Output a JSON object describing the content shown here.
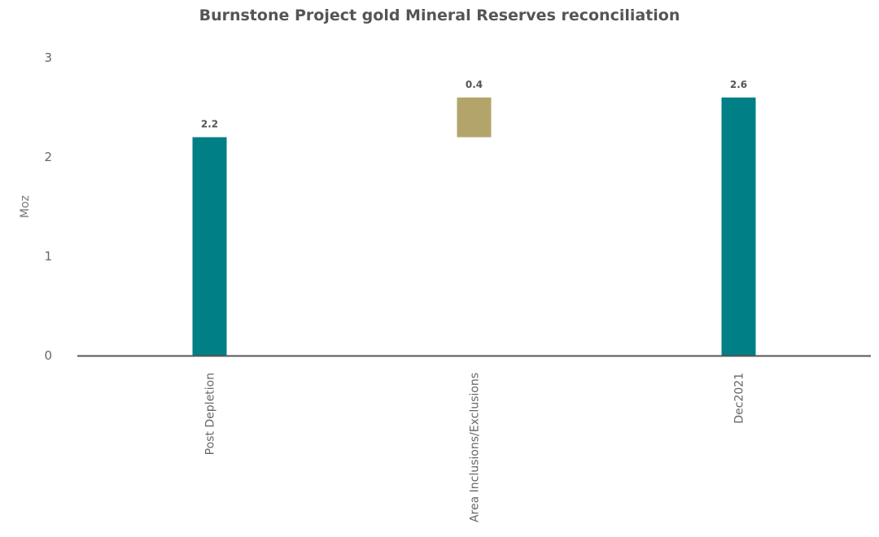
{
  "chart_data": {
    "type": "bar",
    "subtype": "waterfall",
    "title": "Burnstone Project gold Mineral Reserves reconciliation",
    "xlabel": "",
    "ylabel": "Moz",
    "ylim": [
      0,
      3
    ],
    "yticks": [
      0,
      1,
      2,
      3
    ],
    "grid": false,
    "categories": [
      "Post Depletion",
      "Area Inclusions/Exclusions",
      "Dec2021"
    ],
    "bars": [
      {
        "category": "Post Depletion",
        "base": 0,
        "value": 2.2,
        "label": "2.2",
        "kind": "total"
      },
      {
        "category": "Area Inclusions/Exclusions",
        "base": 2.2,
        "value": 0.4,
        "label": "0.4",
        "kind": "change"
      },
      {
        "category": "Dec2021",
        "base": 0,
        "value": 2.6,
        "label": "2.6",
        "kind": "total"
      }
    ],
    "colors": {
      "total": "#007f86",
      "change": "#b3a46a",
      "axis": "#555555"
    }
  }
}
